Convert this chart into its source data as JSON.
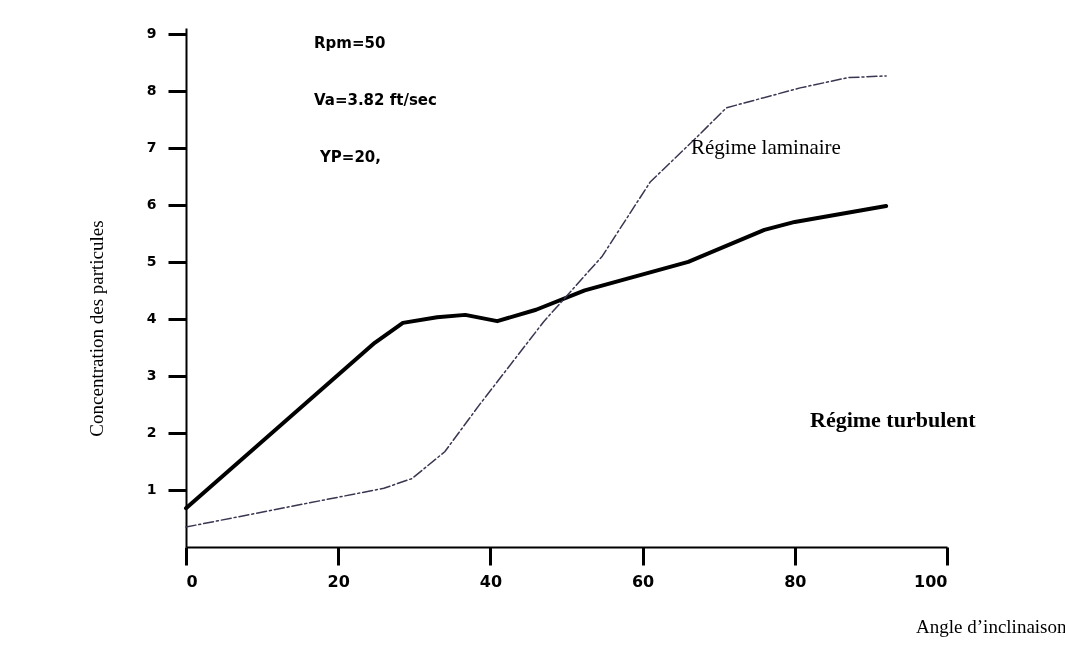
{
  "chart_data": {
    "type": "line",
    "xlabel": "Angle d’inclinaison",
    "ylabel": "Concentration des particules",
    "xlim": [
      0,
      100
    ],
    "ylim": [
      0,
      9.1
    ],
    "xticks": [
      0,
      20,
      40,
      60,
      80,
      100
    ],
    "yticks": [
      1,
      2,
      3,
      4,
      5,
      6,
      7,
      8,
      9
    ],
    "grid": false,
    "marker": "none",
    "annotations": [
      "Rpm=50",
      "Va=3.82 ft/sec",
      "YP=20,",
      "Régime laminaire",
      "Régime turbulent"
    ],
    "series": [
      {
        "color": "#000000",
        "line_style": "solid",
        "x": [
          0,
          24.8,
          28.5,
          33,
          36.7,
          40.9,
          46,
          52.4,
          66,
          76,
          80,
          92
        ],
        "values": [
          0.68,
          3.58,
          3.93,
          4.03,
          4.07,
          3.96,
          4.16,
          4.5,
          5.0,
          5.56,
          5.7,
          5.98
        ]
      },
      {
        "color": "#3a3550",
        "line_style": "dashed",
        "x": [
          0,
          26,
          29.7,
          34,
          38.6,
          47,
          54.7,
          61,
          67,
          71,
          80.7,
          87,
          92
        ],
        "values": [
          0.35,
          1.03,
          1.2,
          1.67,
          2.5,
          3.95,
          5.1,
          6.4,
          7.17,
          7.7,
          8.05,
          8.23,
          8.26
        ]
      }
    ]
  }
}
